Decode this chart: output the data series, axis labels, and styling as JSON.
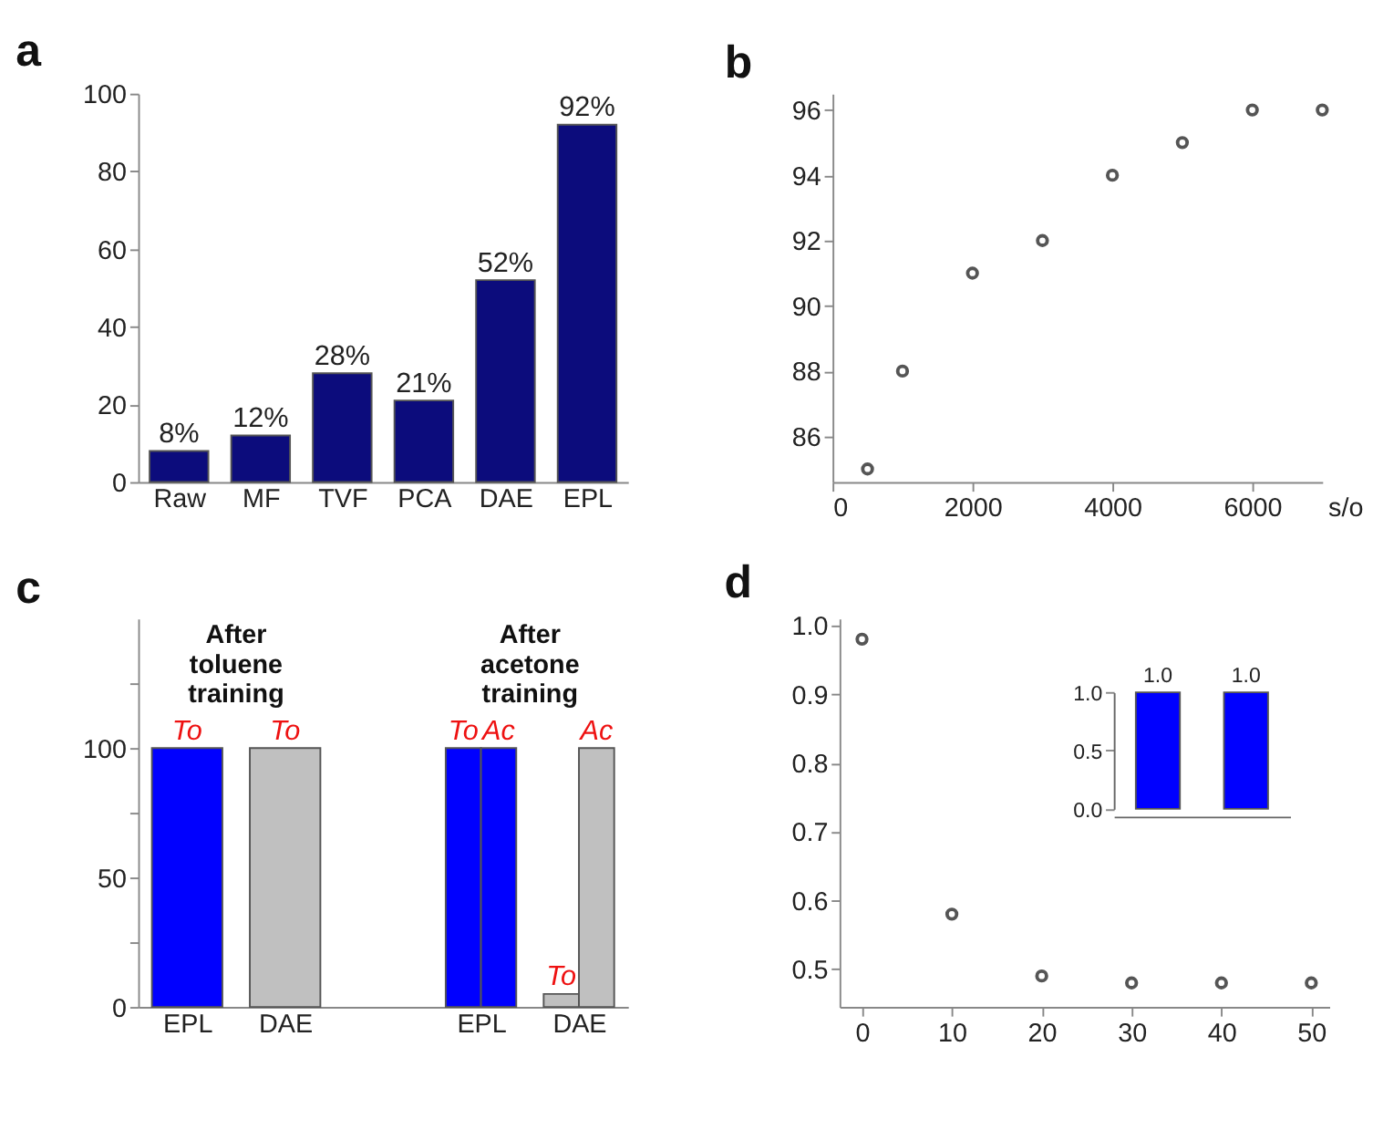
{
  "chart_data": [
    {
      "type": "bar",
      "title": "a",
      "categories": [
        "Raw",
        "MF",
        "TVF",
        "PCA",
        "DAE",
        "EPL"
      ],
      "values": [
        8,
        12,
        28,
        21,
        52,
        92
      ],
      "value_labels": [
        "8%",
        "12%",
        "28%",
        "21%",
        "52%",
        "92%"
      ],
      "color": "#0c0c7c",
      "ylim": [
        0,
        100
      ],
      "yticks": [
        0,
        20,
        40,
        60,
        80,
        100
      ]
    },
    {
      "type": "scatter",
      "title": "b",
      "xlabel": "s/o",
      "x": [
        500,
        1000,
        2000,
        3000,
        4000,
        5000,
        6000,
        7000
      ],
      "values": [
        85,
        88,
        91,
        92,
        94,
        95,
        96,
        96
      ],
      "color": "#555555",
      "marker": "circle",
      "xlim": [
        0,
        7000
      ],
      "xticks": [
        0,
        2000,
        4000,
        6000
      ],
      "ylim": [
        84.6,
        96.5
      ],
      "yticks": [
        86,
        88,
        90,
        92,
        94,
        96
      ]
    },
    {
      "type": "bar",
      "title": "c",
      "categories": [
        "EPL",
        "DAE",
        null,
        "EPL",
        "DAE"
      ],
      "series": [
        {
          "name": "To",
          "colors": [
            "#0000ff",
            "#c0c0c0",
            null,
            "#0000ff",
            "#c0c0c0"
          ],
          "values": [
            100,
            100,
            null,
            100,
            5
          ]
        },
        {
          "name": "Ac",
          "colors": [
            null,
            null,
            null,
            "#0000ff",
            "#c0c0c0"
          ],
          "values": [
            null,
            null,
            null,
            100,
            100
          ]
        }
      ],
      "ylim": [
        0,
        150
      ],
      "yticks": [
        0,
        {
          "value": 25,
          "label": null
        },
        50,
        {
          "value": 75,
          "label": null
        },
        100,
        {
          "value": 125,
          "label": null
        }
      ],
      "annotations": [
        "After toluene training",
        "After acetone training"
      ]
    },
    {
      "type": "scatter",
      "title": "d",
      "x": [
        0,
        10,
        20,
        30,
        40,
        50
      ],
      "values": [
        0.98,
        0.58,
        0.49,
        0.48,
        0.48,
        0.48
      ],
      "color": "#555555",
      "marker": "circle",
      "xlim": [
        -2.5,
        52
      ],
      "xticks": [
        0,
        10,
        20,
        30,
        40,
        50
      ],
      "ylim": [
        0.445,
        1.01
      ],
      "yticks": [
        {
          "value": 0.5,
          "label": "0.5"
        },
        {
          "value": 0.6,
          "label": "0.6"
        },
        {
          "value": 0.7,
          "label": "0.7"
        },
        {
          "value": 0.8,
          "label": "0.8"
        },
        {
          "value": 0.9,
          "label": "0.9"
        },
        {
          "value": 1,
          "label": "1.0"
        }
      ]
    },
    {
      "type": "bar",
      "categories": [
        null,
        null
      ],
      "values": [
        1.0,
        1.0
      ],
      "value_labels": [
        "1.0",
        "1.0"
      ],
      "color": "#0000ff",
      "ylim": [
        0,
        1
      ],
      "yticks": [
        {
          "value": 0,
          "label": "0.0"
        },
        {
          "value": 0.5,
          "label": "0.5"
        },
        {
          "value": 1,
          "label": "1.0"
        }
      ]
    }
  ]
}
